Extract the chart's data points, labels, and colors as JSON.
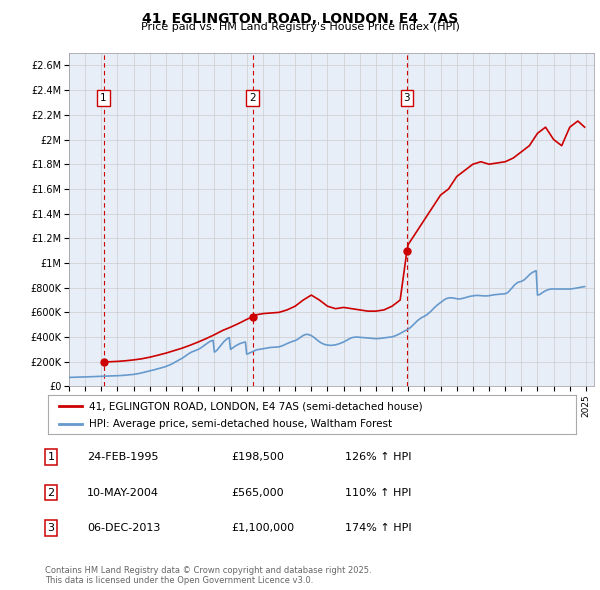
{
  "title": "41, EGLINGTON ROAD, LONDON, E4  7AS",
  "subtitle": "Price paid vs. HM Land Registry's House Price Index (HPI)",
  "ylim": [
    0,
    2700000
  ],
  "yticks": [
    0,
    200000,
    400000,
    600000,
    800000,
    1000000,
    1200000,
    1400000,
    1600000,
    1800000,
    2000000,
    2200000,
    2400000,
    2600000
  ],
  "ytick_labels": [
    "£0",
    "£200K",
    "£400K",
    "£600K",
    "£800K",
    "£1M",
    "£1.2M",
    "£1.4M",
    "£1.6M",
    "£1.8M",
    "£2M",
    "£2.2M",
    "£2.4M",
    "£2.6M"
  ],
  "xlim_start": 1993.0,
  "xlim_end": 2025.5,
  "sale_color": "#cc0000",
  "hpi_color": "#6699cc",
  "vline_color": "#cc0000",
  "grid_color": "#cccccc",
  "bg_color": "#e8eef8",
  "legend_label_sale": "41, EGLINGTON ROAD, LONDON, E4 7AS (semi-detached house)",
  "legend_label_hpi": "HPI: Average price, semi-detached house, Waltham Forest",
  "sale_events": [
    {
      "date": 1995.14,
      "price": 198500,
      "label": "1"
    },
    {
      "date": 2004.36,
      "price": 565000,
      "label": "2"
    },
    {
      "date": 2013.92,
      "price": 1100000,
      "label": "3"
    }
  ],
  "table_rows": [
    {
      "num": "1",
      "date": "24-FEB-1995",
      "price": "£198,500",
      "hpi": "126% ↑ HPI"
    },
    {
      "num": "2",
      "date": "10-MAY-2004",
      "price": "£565,000",
      "hpi": "110% ↑ HPI"
    },
    {
      "num": "3",
      "date": "06-DEC-2013",
      "price": "£1,100,000",
      "hpi": "174% ↑ HPI"
    }
  ],
  "footer": "Contains HM Land Registry data © Crown copyright and database right 2025.\nThis data is licensed under the Open Government Licence v3.0.",
  "hpi_data": {
    "years": [
      1993.0,
      1993.08,
      1993.17,
      1993.25,
      1993.33,
      1993.42,
      1993.5,
      1993.58,
      1993.67,
      1993.75,
      1993.83,
      1993.92,
      1994.0,
      1994.08,
      1994.17,
      1994.25,
      1994.33,
      1994.42,
      1994.5,
      1994.58,
      1994.67,
      1994.75,
      1994.83,
      1994.92,
      1995.0,
      1995.08,
      1995.17,
      1995.25,
      1995.33,
      1995.42,
      1995.5,
      1995.58,
      1995.67,
      1995.75,
      1995.83,
      1995.92,
      1996.0,
      1996.08,
      1996.17,
      1996.25,
      1996.33,
      1996.42,
      1996.5,
      1996.58,
      1996.67,
      1996.75,
      1996.83,
      1996.92,
      1997.0,
      1997.08,
      1997.17,
      1997.25,
      1997.33,
      1997.42,
      1997.5,
      1997.58,
      1997.67,
      1997.75,
      1997.83,
      1997.92,
      1998.0,
      1998.08,
      1998.17,
      1998.25,
      1998.33,
      1998.42,
      1998.5,
      1998.58,
      1998.67,
      1998.75,
      1998.83,
      1998.92,
      1999.0,
      1999.08,
      1999.17,
      1999.25,
      1999.33,
      1999.42,
      1999.5,
      1999.58,
      1999.67,
      1999.75,
      1999.83,
      1999.92,
      2000.0,
      2000.08,
      2000.17,
      2000.25,
      2000.33,
      2000.42,
      2000.5,
      2000.58,
      2000.67,
      2000.75,
      2000.83,
      2000.92,
      2001.0,
      2001.08,
      2001.17,
      2001.25,
      2001.33,
      2001.42,
      2001.5,
      2001.58,
      2001.67,
      2001.75,
      2001.83,
      2001.92,
      2002.0,
      2002.08,
      2002.17,
      2002.25,
      2002.33,
      2002.42,
      2002.5,
      2002.58,
      2002.67,
      2002.75,
      2002.83,
      2002.92,
      2003.0,
      2003.08,
      2003.17,
      2003.25,
      2003.33,
      2003.42,
      2003.5,
      2003.58,
      2003.67,
      2003.75,
      2003.83,
      2003.92,
      2004.0,
      2004.08,
      2004.17,
      2004.25,
      2004.33,
      2004.42,
      2004.5,
      2004.58,
      2004.67,
      2004.75,
      2004.83,
      2004.92,
      2005.0,
      2005.08,
      2005.17,
      2005.25,
      2005.33,
      2005.42,
      2005.5,
      2005.58,
      2005.67,
      2005.75,
      2005.83,
      2005.92,
      2006.0,
      2006.08,
      2006.17,
      2006.25,
      2006.33,
      2006.42,
      2006.5,
      2006.58,
      2006.67,
      2006.75,
      2006.83,
      2006.92,
      2007.0,
      2007.08,
      2007.17,
      2007.25,
      2007.33,
      2007.42,
      2007.5,
      2007.58,
      2007.67,
      2007.75,
      2007.83,
      2007.92,
      2008.0,
      2008.08,
      2008.17,
      2008.25,
      2008.33,
      2008.42,
      2008.5,
      2008.58,
      2008.67,
      2008.75,
      2008.83,
      2008.92,
      2009.0,
      2009.08,
      2009.17,
      2009.25,
      2009.33,
      2009.42,
      2009.5,
      2009.58,
      2009.67,
      2009.75,
      2009.83,
      2009.92,
      2010.0,
      2010.08,
      2010.17,
      2010.25,
      2010.33,
      2010.42,
      2010.5,
      2010.58,
      2010.67,
      2010.75,
      2010.83,
      2010.92,
      2011.0,
      2011.08,
      2011.17,
      2011.25,
      2011.33,
      2011.42,
      2011.5,
      2011.58,
      2011.67,
      2011.75,
      2011.83,
      2011.92,
      2012.0,
      2012.08,
      2012.17,
      2012.25,
      2012.33,
      2012.42,
      2012.5,
      2012.58,
      2012.67,
      2012.75,
      2012.83,
      2012.92,
      2013.0,
      2013.08,
      2013.17,
      2013.25,
      2013.33,
      2013.42,
      2013.5,
      2013.58,
      2013.67,
      2013.75,
      2013.83,
      2013.92,
      2014.0,
      2014.08,
      2014.17,
      2014.25,
      2014.33,
      2014.42,
      2014.5,
      2014.58,
      2014.67,
      2014.75,
      2014.83,
      2014.92,
      2015.0,
      2015.08,
      2015.17,
      2015.25,
      2015.33,
      2015.42,
      2015.5,
      2015.58,
      2015.67,
      2015.75,
      2015.83,
      2015.92,
      2016.0,
      2016.08,
      2016.17,
      2016.25,
      2016.33,
      2016.42,
      2016.5,
      2016.58,
      2016.67,
      2016.75,
      2016.83,
      2016.92,
      2017.0,
      2017.08,
      2017.17,
      2017.25,
      2017.33,
      2017.42,
      2017.5,
      2017.58,
      2017.67,
      2017.75,
      2017.83,
      2017.92,
      2018.0,
      2018.08,
      2018.17,
      2018.25,
      2018.33,
      2018.42,
      2018.5,
      2018.58,
      2018.67,
      2018.75,
      2018.83,
      2018.92,
      2019.0,
      2019.08,
      2019.17,
      2019.25,
      2019.33,
      2019.42,
      2019.5,
      2019.58,
      2019.67,
      2019.75,
      2019.83,
      2019.92,
      2020.0,
      2020.08,
      2020.17,
      2020.25,
      2020.33,
      2020.42,
      2020.5,
      2020.58,
      2020.67,
      2020.75,
      2020.83,
      2020.92,
      2021.0,
      2021.08,
      2021.17,
      2021.25,
      2021.33,
      2021.42,
      2021.5,
      2021.58,
      2021.67,
      2021.75,
      2021.83,
      2021.92,
      2022.0,
      2022.08,
      2022.17,
      2022.25,
      2022.33,
      2022.42,
      2022.5,
      2022.58,
      2022.67,
      2022.75,
      2022.83,
      2022.92,
      2023.0,
      2023.08,
      2023.17,
      2023.25,
      2023.33,
      2023.42,
      2023.5,
      2023.58,
      2023.67,
      2023.75,
      2023.83,
      2023.92,
      2024.0,
      2024.08,
      2024.17,
      2024.25,
      2024.33,
      2024.42,
      2024.5,
      2024.58,
      2024.67,
      2024.75,
      2024.83,
      2024.92
    ],
    "values": [
      73000,
      73500,
      74000,
      74500,
      75000,
      75200,
      75400,
      75600,
      75800,
      76000,
      76200,
      76400,
      77000,
      77500,
      78000,
      78500,
      79000,
      79500,
      80000,
      80500,
      81000,
      81500,
      82000,
      82500,
      83000,
      83500,
      84000,
      84500,
      85000,
      85200,
      85400,
      85600,
      85800,
      86000,
      86200,
      86400,
      87000,
      87500,
      88000,
      88800,
      89500,
      90500,
      91500,
      92500,
      93500,
      94500,
      95500,
      96500,
      97500,
      99000,
      101000,
      103000,
      105000,
      107500,
      110000,
      112500,
      115000,
      117500,
      120000,
      122500,
      125000,
      128000,
      131000,
      134000,
      137000,
      140000,
      143000,
      146000,
      149000,
      152000,
      155000,
      158000,
      162000,
      166000,
      170000,
      175000,
      180000,
      186000,
      192000,
      198000,
      204000,
      210000,
      216000,
      222000,
      228000,
      235000,
      242000,
      250000,
      258000,
      266000,
      272000,
      278000,
      283000,
      288000,
      292000,
      296000,
      300000,
      306000,
      313000,
      320000,
      328000,
      336000,
      344000,
      352000,
      360000,
      366000,
      370000,
      374000,
      278000,
      285000,
      295000,
      308000,
      322000,
      336000,
      350000,
      362000,
      373000,
      382000,
      390000,
      396000,
      300000,
      308000,
      315000,
      323000,
      330000,
      336000,
      342000,
      347000,
      351000,
      355000,
      358000,
      360000,
      262000,
      265000,
      270000,
      275000,
      280000,
      285000,
      290000,
      295000,
      298000,
      300000,
      302000,
      303000,
      305000,
      307000,
      309000,
      311000,
      313000,
      315000,
      316000,
      317000,
      318000,
      318500,
      319000,
      319500,
      321000,
      324000,
      328000,
      332000,
      337000,
      342000,
      347000,
      352000,
      357000,
      361000,
      365000,
      368000,
      372000,
      377000,
      383000,
      390000,
      398000,
      406000,
      413000,
      418000,
      421000,
      422000,
      420000,
      416000,
      412000,
      405000,
      397000,
      388000,
      379000,
      370000,
      362000,
      355000,
      349000,
      344000,
      340000,
      337000,
      335000,
      334000,
      333000,
      333000,
      334000,
      335000,
      337000,
      340000,
      343000,
      347000,
      351000,
      355000,
      360000,
      366000,
      372000,
      378000,
      384000,
      390000,
      394000,
      397000,
      399000,
      400000,
      400000,
      399000,
      398000,
      397000,
      396000,
      395000,
      394000,
      393000,
      392000,
      391000,
      390000,
      389000,
      388000,
      387500,
      387000,
      387500,
      388000,
      389000,
      390500,
      392000,
      393500,
      395000,
      396500,
      398000,
      399000,
      400000,
      402000,
      405000,
      409000,
      413000,
      418000,
      423000,
      429000,
      435000,
      441000,
      447000,
      453000,
      458000,
      464000,
      472000,
      481000,
      491000,
      502000,
      513000,
      524000,
      534000,
      543000,
      551000,
      558000,
      563000,
      568000,
      575000,
      582000,
      591000,
      601000,
      611000,
      622000,
      633000,
      644000,
      654000,
      663000,
      672000,
      680000,
      689000,
      697000,
      704000,
      710000,
      714000,
      717000,
      718000,
      718000,
      717000,
      715000,
      712000,
      710000,
      709000,
      709000,
      710000,
      712000,
      715000,
      718000,
      721000,
      724000,
      727000,
      730000,
      732000,
      734000,
      736000,
      737000,
      737000,
      737000,
      736000,
      735000,
      734000,
      733000,
      733000,
      733000,
      734000,
      735000,
      737000,
      739000,
      741000,
      743000,
      744000,
      745000,
      746000,
      747000,
      748000,
      749000,
      750000,
      751000,
      755000,
      762000,
      772000,
      785000,
      797000,
      810000,
      822000,
      832000,
      840000,
      845000,
      848000,
      851000,
      856000,
      863000,
      872000,
      882000,
      893000,
      904000,
      914000,
      922000,
      928000,
      933000,
      937000,
      740000,
      742000,
      747000,
      755000,
      762000,
      769000,
      775000,
      780000,
      784000,
      787000,
      789000,
      790000,
      790000,
      789000,
      789000,
      789000,
      789000,
      789000,
      789000,
      789000,
      789000,
      789000,
      789000,
      789000,
      789000,
      790000,
      791000,
      793000,
      795000,
      797000,
      799000,
      801000,
      803000,
      805000,
      807000,
      809000
    ]
  },
  "red_line_data": {
    "years": [
      1995.14,
      1995.5,
      1996.0,
      1996.5,
      1997.0,
      1997.5,
      1998.0,
      1998.5,
      1999.0,
      1999.5,
      2000.0,
      2000.5,
      2001.0,
      2001.5,
      2002.0,
      2002.5,
      2003.0,
      2003.5,
      2004.0,
      2004.36,
      2004.5,
      2005.0,
      2005.5,
      2006.0,
      2006.5,
      2007.0,
      2007.5,
      2008.0,
      2008.5,
      2009.0,
      2009.5,
      2010.0,
      2010.5,
      2011.0,
      2011.5,
      2012.0,
      2012.5,
      2013.0,
      2013.5,
      2013.92,
      2014.0,
      2014.5,
      2015.0,
      2015.5,
      2016.0,
      2016.5,
      2017.0,
      2017.5,
      2018.0,
      2018.5,
      2019.0,
      2019.5,
      2020.0,
      2020.5,
      2021.0,
      2021.5,
      2022.0,
      2022.5,
      2023.0,
      2023.5,
      2024.0,
      2024.5,
      2024.92
    ],
    "values": [
      198500,
      200000,
      203000,
      208000,
      215000,
      224000,
      237000,
      253000,
      270000,
      290000,
      310000,
      334000,
      360000,
      388000,
      419000,
      453000,
      480000,
      510000,
      543000,
      565000,
      578000,
      590000,
      595000,
      600000,
      620000,
      650000,
      700000,
      740000,
      700000,
      650000,
      630000,
      640000,
      630000,
      620000,
      610000,
      610000,
      620000,
      650000,
      700000,
      1100000,
      1150000,
      1250000,
      1350000,
      1450000,
      1550000,
      1600000,
      1700000,
      1750000,
      1800000,
      1820000,
      1800000,
      1810000,
      1820000,
      1850000,
      1900000,
      1950000,
      2050000,
      2100000,
      2000000,
      1950000,
      2100000,
      2150000,
      2100000
    ]
  }
}
